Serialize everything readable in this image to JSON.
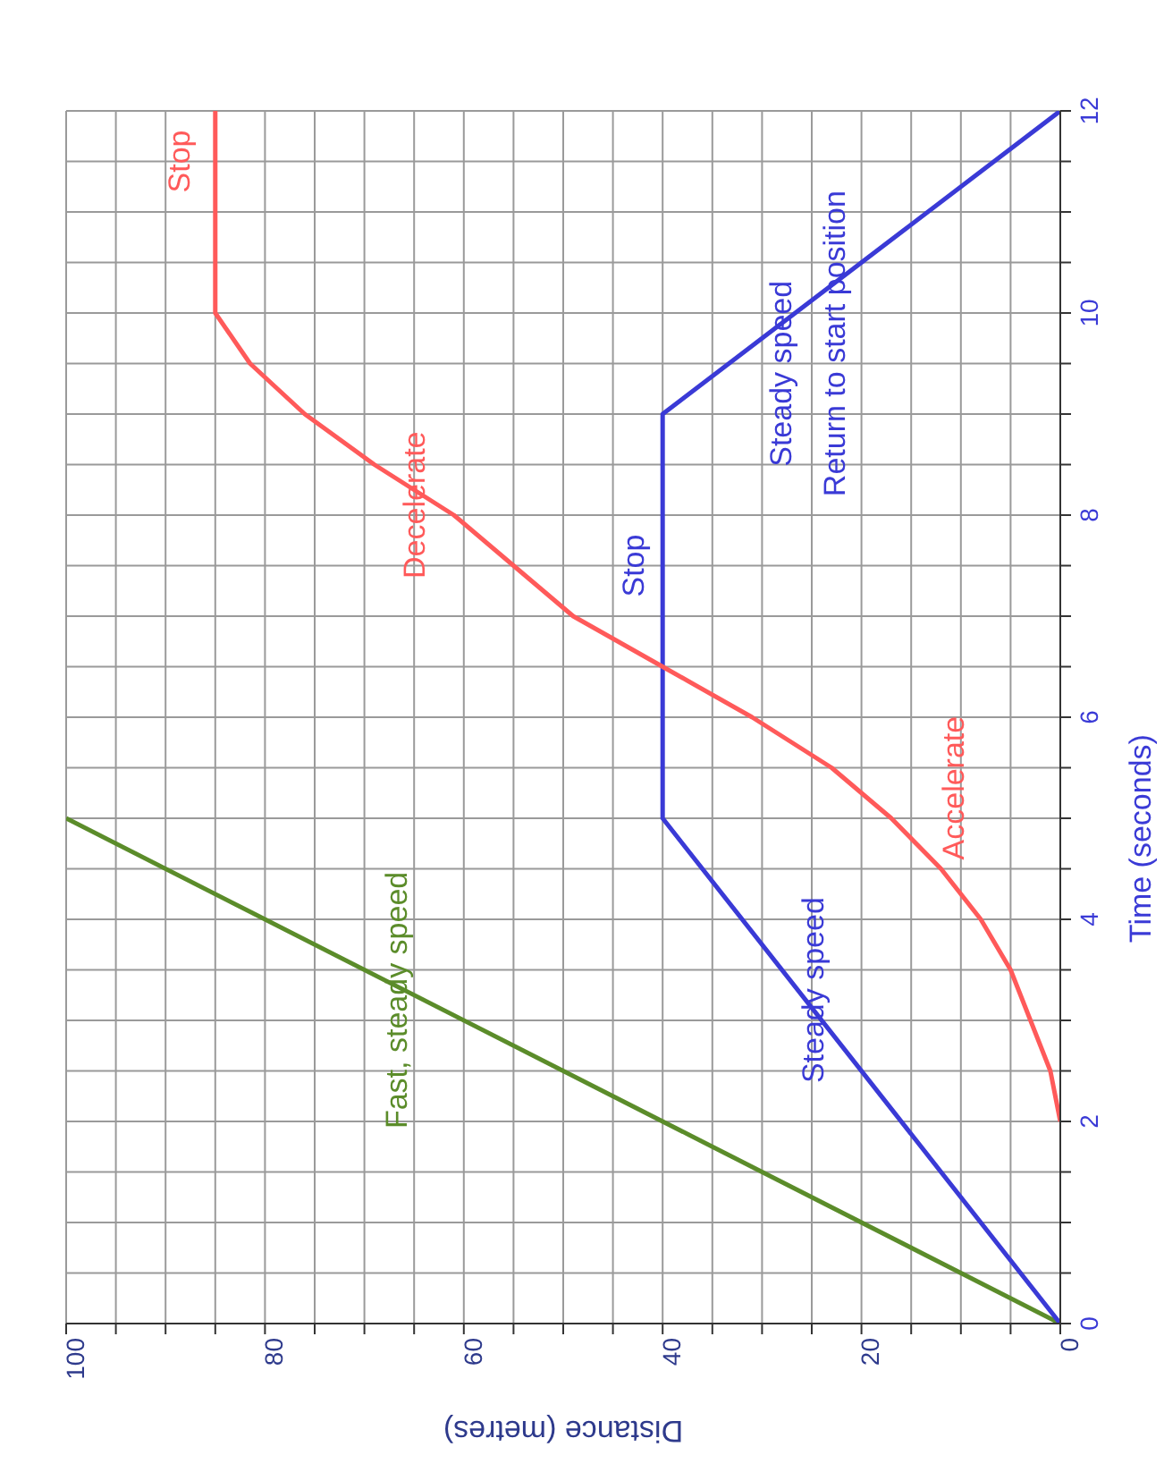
{
  "chart_data": {
    "type": "line",
    "xlabel": "Distance (metres)",
    "ylabel": "Time (seconds)",
    "xlim": [
      100,
      0
    ],
    "ylim": [
      0,
      12
    ],
    "yticks": [
      0,
      {
        "value": 0.5,
        "label": null
      },
      {
        "value": 1,
        "label": null
      },
      {
        "value": 1.5,
        "label": null
      },
      2,
      {
        "value": 2.5,
        "label": null
      },
      {
        "value": 3,
        "label": null
      },
      {
        "value": 3.5,
        "label": null
      },
      4,
      {
        "value": 4.5,
        "label": null
      },
      {
        "value": 5,
        "label": null
      },
      {
        "value": 5.5,
        "label": null
      },
      6,
      {
        "value": 6.5,
        "label": null
      },
      {
        "value": 7,
        "label": null
      },
      {
        "value": 7.5,
        "label": null
      },
      8,
      {
        "value": 8.5,
        "label": null
      },
      {
        "value": 9,
        "label": null
      },
      {
        "value": 9.5,
        "label": null
      },
      10,
      {
        "value": 10.5,
        "label": null
      },
      {
        "value": 11,
        "label": null
      },
      {
        "value": 11.5,
        "label": null
      },
      12
    ],
    "xticks": [
      0,
      {
        "value": 5,
        "label": null
      },
      {
        "value": 10,
        "label": null
      },
      {
        "value": 15,
        "label": null
      },
      20,
      {
        "value": 25,
        "label": null
      },
      {
        "value": 30,
        "label": null
      },
      {
        "value": 35,
        "label": null
      },
      40,
      {
        "value": 45,
        "label": null
      },
      {
        "value": 50,
        "label": null
      },
      {
        "value": 55,
        "label": null
      },
      60,
      {
        "value": 65,
        "label": null
      },
      {
        "value": 70,
        "label": null
      },
      {
        "value": 75,
        "label": null
      },
      80,
      {
        "value": 85,
        "label": null
      },
      {
        "value": 90,
        "label": null
      },
      {
        "value": 95,
        "label": null
      },
      100
    ],
    "grid": true,
    "legend": false,
    "marker": "none",
    "line_style": "solid",
    "series": [
      {
        "color": "#5b8c2a",
        "x": [
          0,
          100
        ],
        "values": [
          0,
          5
        ]
      },
      {
        "color": "#3a3ad6",
        "x": [
          0,
          40,
          40,
          0
        ],
        "values": [
          0,
          5,
          9,
          12
        ]
      },
      {
        "color": "#ff5a5a",
        "x": [
          0,
          1,
          3,
          5,
          8,
          12,
          17,
          23,
          31,
          40,
          49,
          55,
          61,
          69,
          76,
          81.5,
          85,
          85
        ],
        "values": [
          2,
          2.5,
          3,
          3.5,
          4,
          4.5,
          5,
          5.5,
          6,
          6.5,
          7,
          7.5,
          8,
          8.5,
          9,
          9.5,
          10,
          12
        ]
      }
    ],
    "annotations": [
      {
        "text": "Fast, steady speed",
        "x": 64,
        "y": 3.2
      },
      {
        "text": "Steady speed",
        "x": 26.4,
        "y": 3.3
      },
      {
        "text": "Stop",
        "x": 40,
        "y": 7.5
      },
      {
        "text": "Steady speed",
        "x": 34.7,
        "y": 9.4
      },
      {
        "text": "Return to start position",
        "x": 22.7,
        "y": 10.3
      },
      {
        "text": "Accelerate",
        "x": 20.6,
        "y": 5.3
      },
      {
        "text": "Decelerate",
        "x": 62.6,
        "y": 8.1
      },
      {
        "text": "Stop",
        "x": 85,
        "y": 11.5
      }
    ]
  }
}
